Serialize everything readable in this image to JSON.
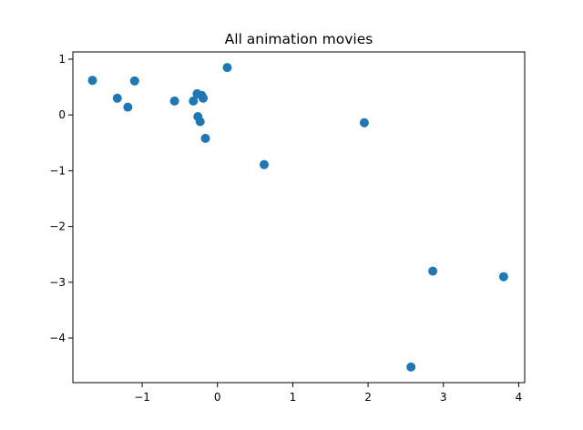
{
  "chart_data": {
    "type": "scatter",
    "title": "All animation movies",
    "xlabel": "",
    "ylabel": "",
    "xlim": [
      -1.92,
      4.08
    ],
    "ylim": [
      -4.8,
      1.13
    ],
    "xticks": [
      -1,
      0,
      1,
      2,
      3,
      4
    ],
    "yticks": [
      1,
      0,
      -1,
      -2,
      -3,
      -4
    ],
    "grid": false,
    "color": "#1f77b4",
    "points": [
      {
        "x": -1.66,
        "y": 0.62
      },
      {
        "x": -1.33,
        "y": 0.3
      },
      {
        "x": -1.19,
        "y": 0.14
      },
      {
        "x": -1.1,
        "y": 0.61
      },
      {
        "x": -0.57,
        "y": 0.25
      },
      {
        "x": -0.32,
        "y": 0.25
      },
      {
        "x": -0.27,
        "y": 0.38
      },
      {
        "x": -0.21,
        "y": 0.35
      },
      {
        "x": -0.19,
        "y": 0.3
      },
      {
        "x": -0.26,
        "y": -0.03
      },
      {
        "x": -0.23,
        "y": -0.12
      },
      {
        "x": -0.16,
        "y": -0.42
      },
      {
        "x": 0.13,
        "y": 0.85
      },
      {
        "x": 0.62,
        "y": -0.89
      },
      {
        "x": 1.95,
        "y": -0.14
      },
      {
        "x": 2.86,
        "y": -2.8
      },
      {
        "x": 3.8,
        "y": -2.9
      },
      {
        "x": 2.57,
        "y": -4.52
      }
    ]
  }
}
